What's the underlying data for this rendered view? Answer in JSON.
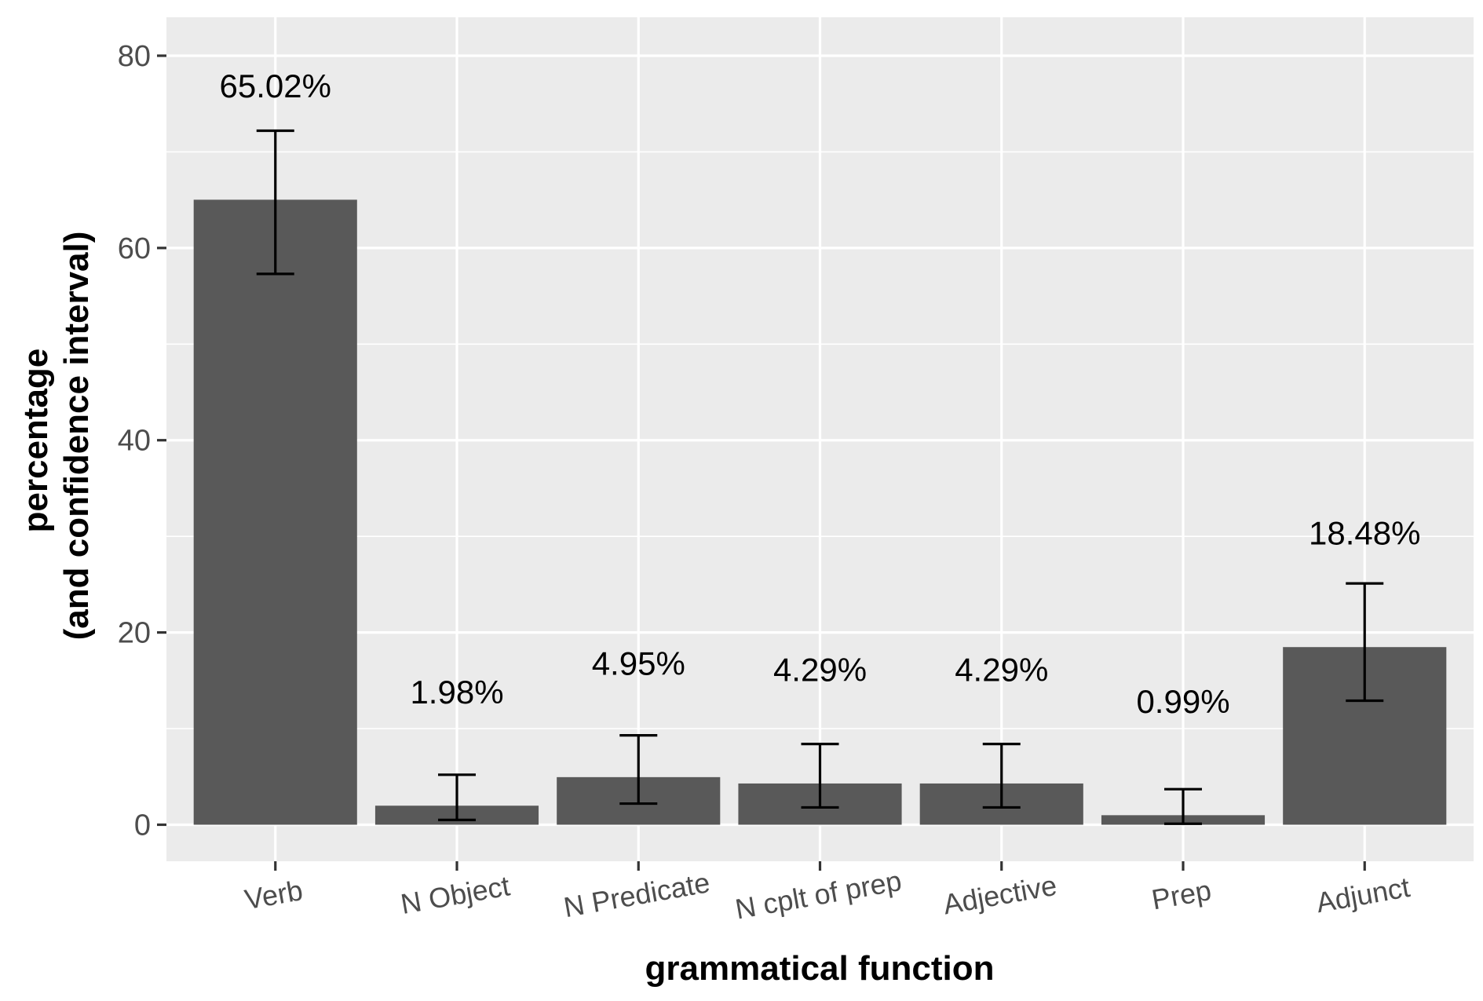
{
  "chart_data": {
    "type": "bar",
    "title": "",
    "xlabel": "grammatical function",
    "ylabel_lines": [
      "percentage",
      "(and confidence interval)"
    ],
    "categories": [
      "Verb",
      "N Object",
      "N Predicate",
      "N cplt of prep",
      "Adjective",
      "Prep",
      "Adjunct"
    ],
    "values": [
      65.02,
      1.98,
      4.95,
      4.29,
      4.29,
      0.99,
      18.48
    ],
    "data_labels": [
      "65.02%",
      "1.98%",
      "4.95%",
      "4.29%",
      "4.29%",
      "0.99%",
      "18.48%"
    ],
    "ci_lower": [
      57.3,
      0.5,
      2.2,
      1.8,
      1.8,
      0.1,
      12.9
    ],
    "ci_upper": [
      72.2,
      5.2,
      9.3,
      8.4,
      8.4,
      3.7,
      25.1
    ],
    "ylim": [
      -3.8,
      84
    ],
    "yticks": [
      0,
      20,
      40,
      60,
      80
    ],
    "ytick_labels": [
      "0",
      "20",
      "40",
      "60",
      "80"
    ],
    "grid": true,
    "colors": {
      "bar": "#595959",
      "panel": "#ebebeb",
      "grid": "#ffffff",
      "error_bar": "#000000"
    }
  }
}
